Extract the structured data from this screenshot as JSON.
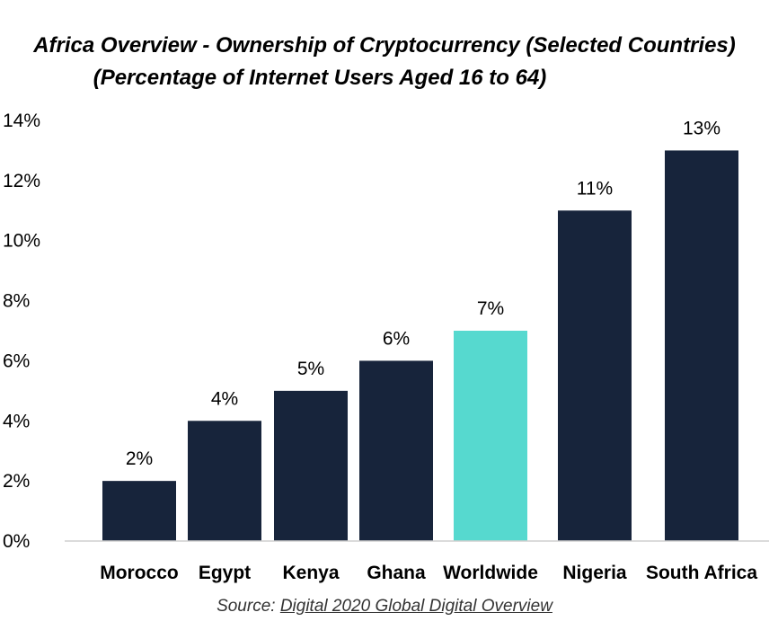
{
  "chart_data": {
    "type": "bar",
    "title": "Africa Overview - Ownership of Cryptocurrency (Selected Countries)",
    "subtitle": "(Percentage of Internet Users Aged 16 to 64)",
    "categories": [
      "Morocco",
      "Egypt",
      "Kenya",
      "Ghana",
      "Worldwide",
      "Nigeria",
      "South Africa"
    ],
    "values": [
      2,
      4,
      5,
      6,
      7,
      11,
      13
    ],
    "data_labels": [
      "2%",
      "4%",
      "5%",
      "6%",
      "7%",
      "11%",
      "13%"
    ],
    "yticks": [
      0,
      2,
      4,
      6,
      8,
      10,
      12,
      14
    ],
    "ytick_labels": [
      "0%",
      "2%",
      "4%",
      "6%",
      "8%",
      "10%",
      "12%",
      "14%"
    ],
    "ylim": [
      0,
      14
    ],
    "xlabel": "",
    "ylabel": "",
    "grid": false,
    "legend": "none",
    "colors": {
      "default_bar": "#17243b",
      "highlight_bar": "#56d9cf",
      "highlight_category": "Worldwide"
    }
  },
  "source": {
    "prefix": "Source:",
    "link_text": "Digital 2020 Global Digital Overview"
  }
}
